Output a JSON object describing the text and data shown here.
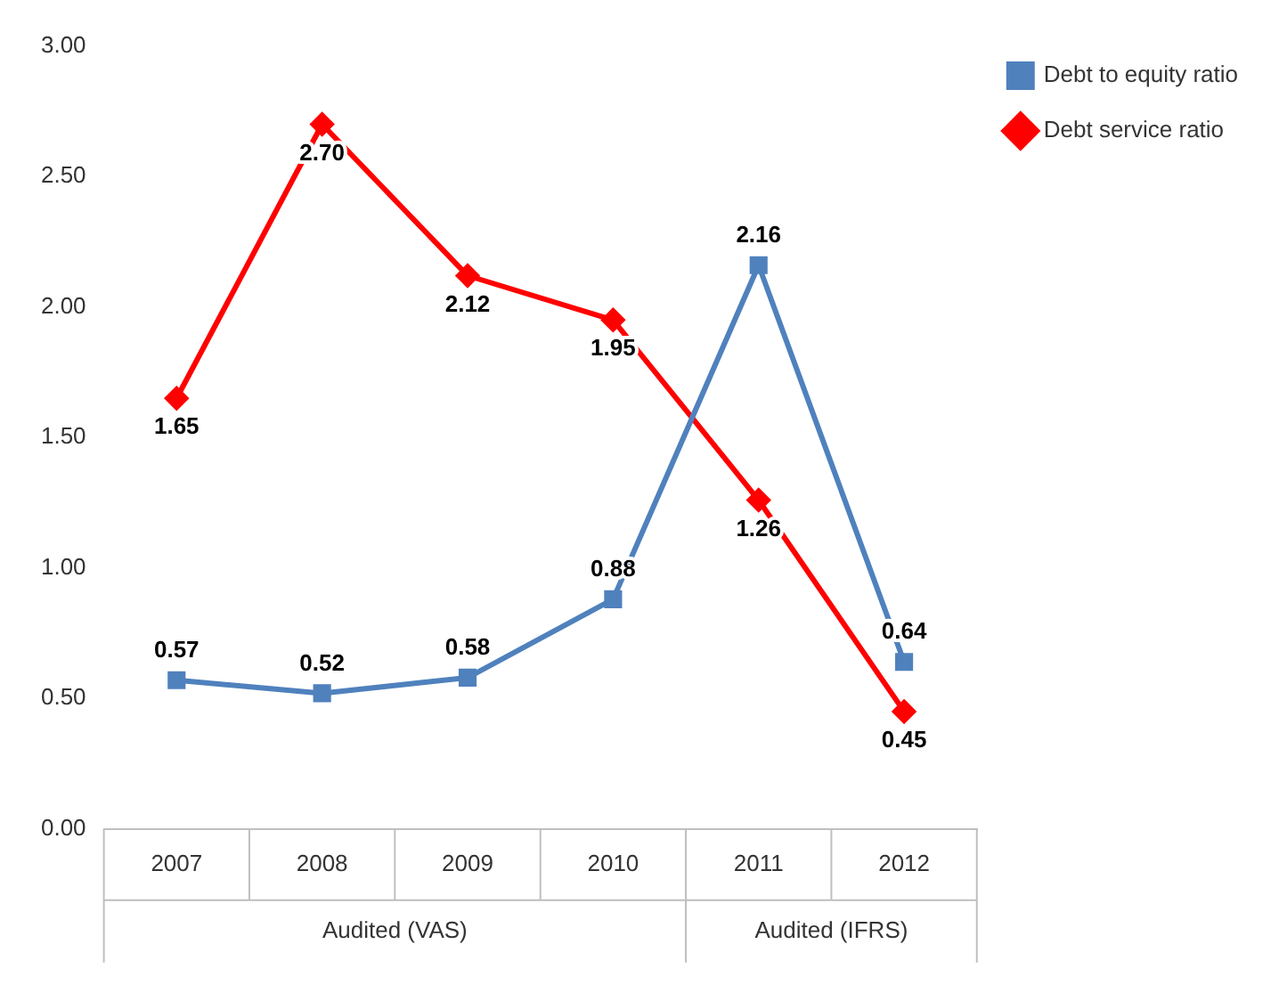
{
  "chart_data": {
    "type": "line",
    "categories": [
      "2007",
      "2008",
      "2009",
      "2010",
      "2011",
      "2012"
    ],
    "series": [
      {
        "name": "Debt to equity ratio",
        "color": "#4f81bd",
        "marker": "square",
        "values": [
          0.57,
          0.52,
          0.58,
          0.88,
          2.16,
          0.64
        ],
        "value_labels": [
          "0.57",
          "0.52",
          "0.58",
          "0.88",
          "2.16",
          "0.64"
        ]
      },
      {
        "name": "Debt service ratio",
        "color": "#ff0000",
        "marker": "diamond",
        "values": [
          1.65,
          2.7,
          2.12,
          1.95,
          1.26,
          0.45
        ],
        "value_labels": [
          "1.65",
          "2.70",
          "2.12",
          "1.95",
          "1.26",
          "0.45"
        ]
      }
    ],
    "ylim": [
      0,
      3
    ],
    "yticks": [
      {
        "value": 0,
        "label": "0.00"
      },
      {
        "value": 0.5,
        "label": "0.50"
      },
      {
        "value": 1,
        "label": "1.00"
      },
      {
        "value": 1.5,
        "label": "1.50"
      },
      {
        "value": 2,
        "label": "2.00"
      },
      {
        "value": 2.5,
        "label": "2.50"
      },
      {
        "value": 3,
        "label": "3.00"
      }
    ],
    "annotations": [
      "Audited (VAS)",
      "Audited (IFRS)"
    ],
    "legend": "top right",
    "grid": false
  }
}
